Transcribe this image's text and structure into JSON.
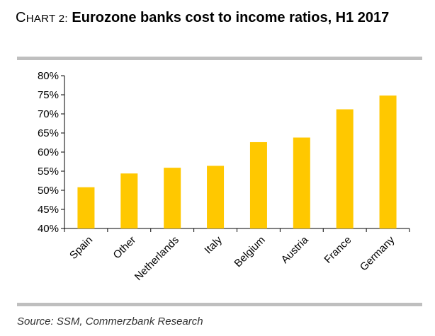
{
  "header": {
    "prefix_initial": "C",
    "prefix_rest": "HART 2:",
    "title": "Eurozone banks cost to income ratios, H1 2017"
  },
  "footer": {
    "source": "Source: SSM, Commerzbank Research"
  },
  "chart_data": {
    "type": "bar",
    "title": "Eurozone banks cost to income ratios, H1 2017",
    "xlabel": "",
    "ylabel": "",
    "categories": [
      "Spain",
      "Other",
      "Netherlands",
      "Italy",
      "Belgium",
      "Austria",
      "France",
      "Germany"
    ],
    "values": [
      50.8,
      54.4,
      55.9,
      56.4,
      62.6,
      63.8,
      71.2,
      74.8
    ],
    "ylim": [
      40,
      80
    ],
    "yticks": [
      40,
      45,
      50,
      55,
      60,
      65,
      70,
      75,
      80
    ],
    "ytick_labels": [
      "40%",
      "45%",
      "50%",
      "55%",
      "60%",
      "65%",
      "70%",
      "75%",
      "80%"
    ],
    "grid": false,
    "legend": "none",
    "bar_color": "#ffc800",
    "axis_color": "#000000"
  }
}
